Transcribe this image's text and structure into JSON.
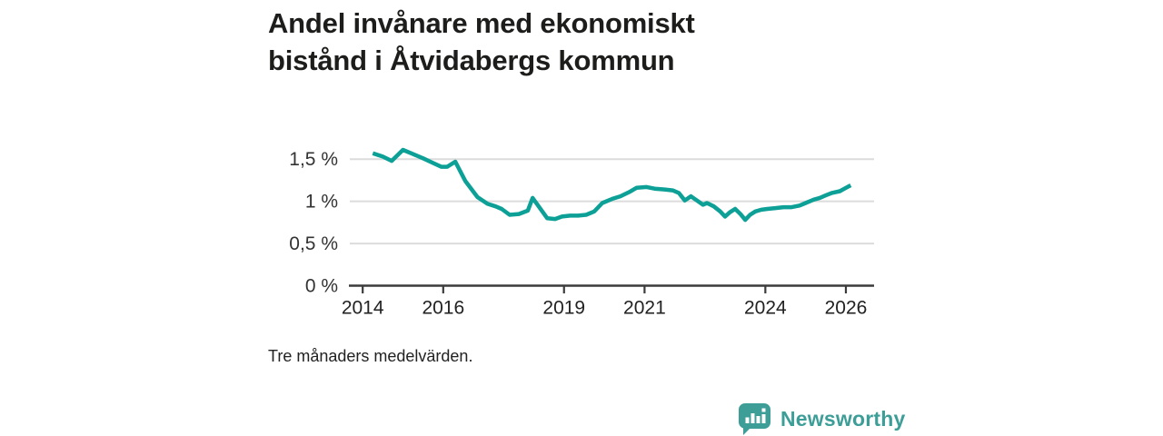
{
  "header": {
    "title_line1": "Andel invånare med ekonomiskt",
    "title_line2": "bistånd i Åtvidabergs kommun"
  },
  "footnote": "Tre månaders medelvärden.",
  "brand": {
    "name": "Newsworthy",
    "icon": "speech-bubble-bar-chart-icon",
    "color": "#3d9e98"
  },
  "colors": {
    "line": "#0da097",
    "grid": "#dcdcdc",
    "axis": "#3b3b3b",
    "tick_label": "#333333"
  },
  "chart_data": {
    "type": "line",
    "title": "Andel invånare med ekonomiskt bistånd i Åtvidabergs kommun",
    "subtitle": "Tre månaders medelvärden.",
    "series_name": "Andel invånare med ekonomiskt bistånd (%)",
    "xlabel": "",
    "ylabel": "",
    "grid": "horizontal",
    "legend": "none",
    "xlim": [
      2013.68,
      2026.7
    ],
    "ylim": [
      0,
      1.75
    ],
    "xticks": [
      {
        "value": 2014,
        "label": "2014"
      },
      {
        "value": 2016,
        "label": "2016"
      },
      {
        "value": 2019,
        "label": "2019"
      },
      {
        "value": 2021,
        "label": "2021"
      },
      {
        "value": 2024,
        "label": "2024"
      },
      {
        "value": 2026,
        "label": "2026"
      }
    ],
    "yticks": [
      {
        "value": 0,
        "label": "0 %"
      },
      {
        "value": 0.5,
        "label": "0,5 %"
      },
      {
        "value": 1,
        "label": "1 %"
      },
      {
        "value": 1.5,
        "label": "1,5 %"
      }
    ],
    "x": [
      2014.25,
      2014.5,
      2014.72,
      2015.0,
      2015.2,
      2015.5,
      2015.72,
      2015.95,
      2016.1,
      2016.3,
      2016.55,
      2016.85,
      2017.1,
      2017.3,
      2017.45,
      2017.65,
      2017.88,
      2018.1,
      2018.22,
      2018.4,
      2018.58,
      2018.78,
      2018.95,
      2019.15,
      2019.35,
      2019.55,
      2019.75,
      2019.95,
      2020.2,
      2020.4,
      2020.62,
      2020.8,
      2021.05,
      2021.25,
      2021.5,
      2021.7,
      2021.85,
      2022.0,
      2022.15,
      2022.3,
      2022.45,
      2022.55,
      2022.72,
      2022.88,
      2023.0,
      2023.12,
      2023.25,
      2023.38,
      2023.5,
      2023.62,
      2023.75,
      2023.9,
      2024.05,
      2024.25,
      2024.45,
      2024.65,
      2024.85,
      2025.0,
      2025.2,
      2025.35,
      2025.5,
      2025.65,
      2025.85,
      2026.0,
      2026.12
    ],
    "values": [
      1.57,
      1.53,
      1.48,
      1.61,
      1.57,
      1.51,
      1.46,
      1.41,
      1.41,
      1.47,
      1.24,
      1.05,
      0.97,
      0.94,
      0.91,
      0.84,
      0.85,
      0.89,
      1.04,
      0.92,
      0.8,
      0.79,
      0.82,
      0.83,
      0.83,
      0.84,
      0.88,
      0.98,
      1.03,
      1.06,
      1.11,
      1.16,
      1.17,
      1.15,
      1.14,
      1.13,
      1.1,
      1.01,
      1.06,
      1.01,
      0.96,
      0.98,
      0.94,
      0.88,
      0.82,
      0.87,
      0.91,
      0.85,
      0.78,
      0.84,
      0.88,
      0.9,
      0.91,
      0.92,
      0.93,
      0.93,
      0.95,
      0.98,
      1.02,
      1.04,
      1.07,
      1.1,
      1.12,
      1.16,
      1.19
    ]
  }
}
